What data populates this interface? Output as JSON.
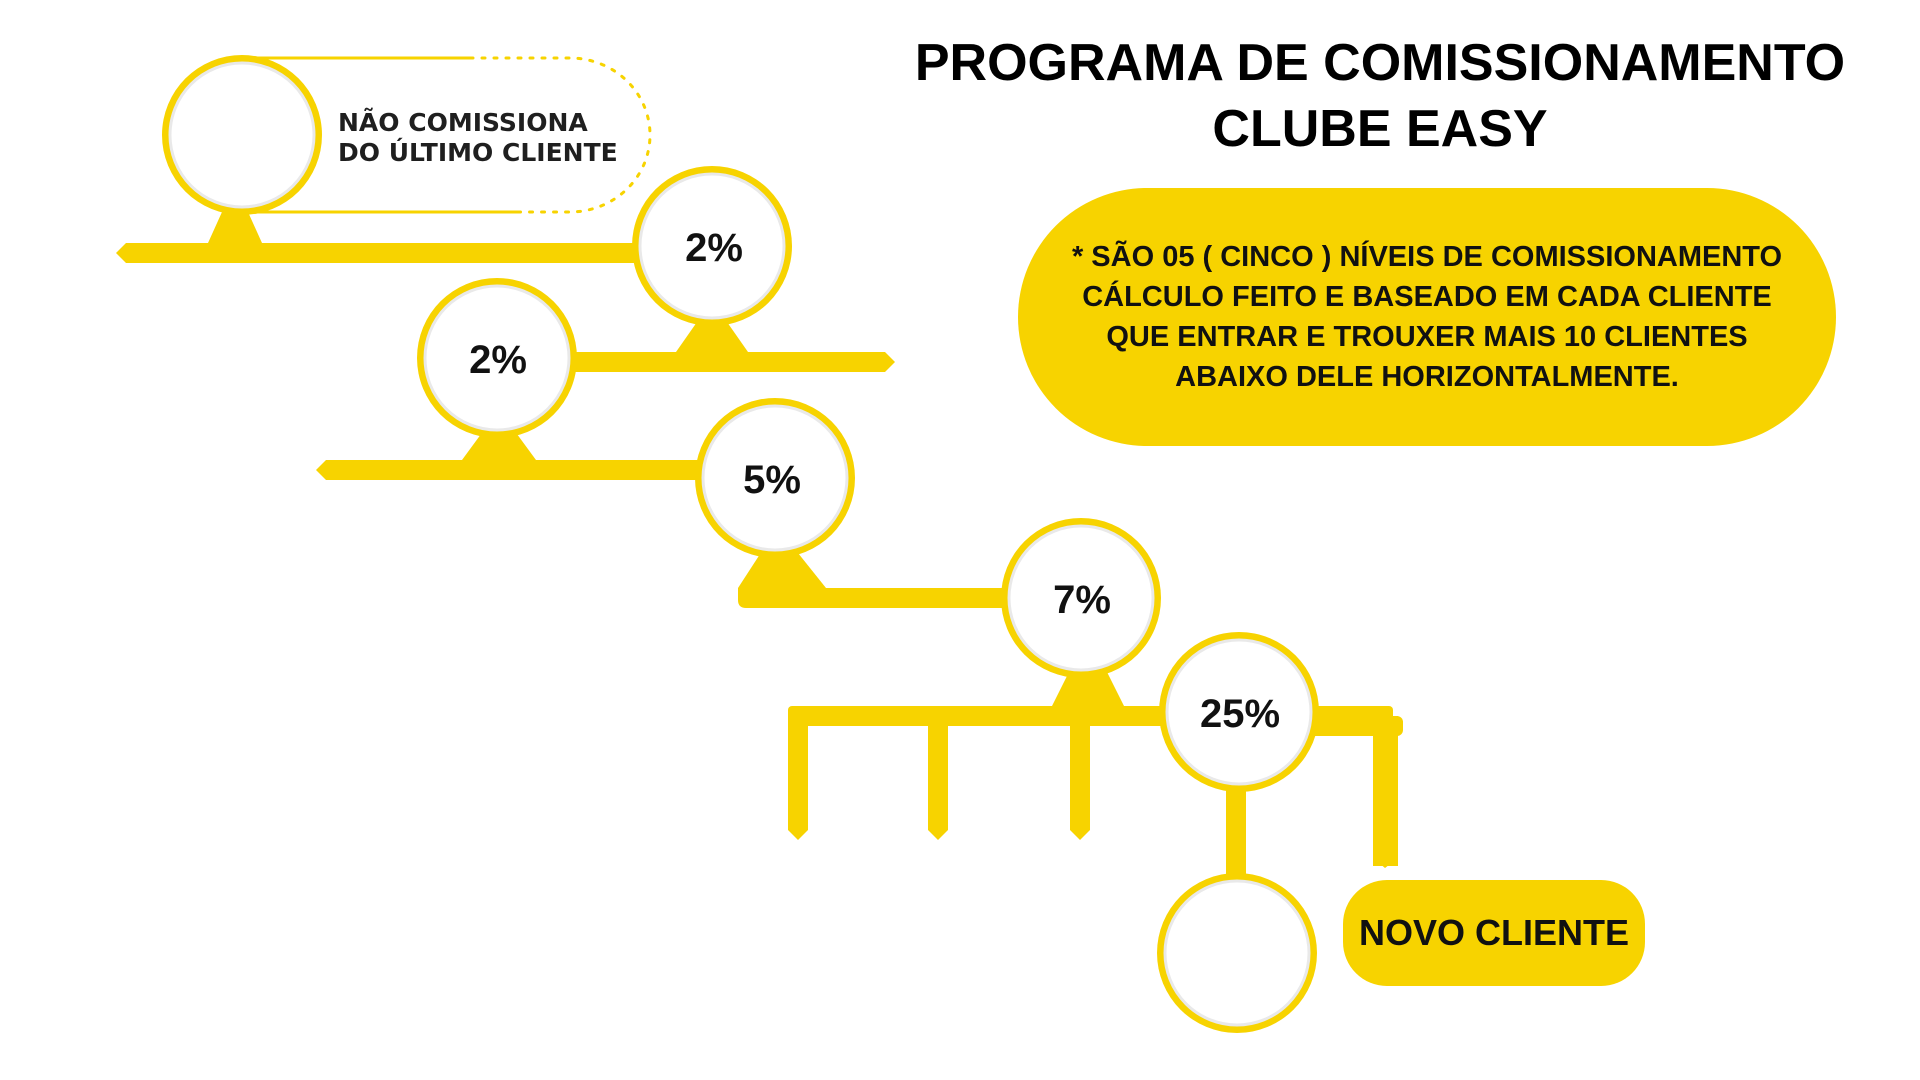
{
  "title": {
    "line1": "PROGRAMA DE COMISSIONAMENTO",
    "line2": "CLUBE EASY"
  },
  "note": "* SÃO 05 ( CINCO ) NÍVEIS DE COMISSIONAMENTO\nCÁLCULO FEITO E BASEADO EM CADA CLIENTE\nQUE ENTRAR  E TROUXER MAIS 10 CLIENTES\nABAIXO  DELE HORIZONTALMENTE.",
  "top_node_label": "NÃO COMISSIONA\nDO ÚLTIMO CLIENTE",
  "levels": [
    {
      "id": "level-1",
      "label": "2%"
    },
    {
      "id": "level-2",
      "label": "2%"
    },
    {
      "id": "level-3",
      "label": "5%"
    },
    {
      "id": "level-4",
      "label": "7%"
    },
    {
      "id": "level-5",
      "label": "25%"
    }
  ],
  "new_client_label": "NOVO CLIENTE",
  "colors": {
    "accent": "#f7d300",
    "text": "#111111",
    "background": "#ffffff"
  }
}
